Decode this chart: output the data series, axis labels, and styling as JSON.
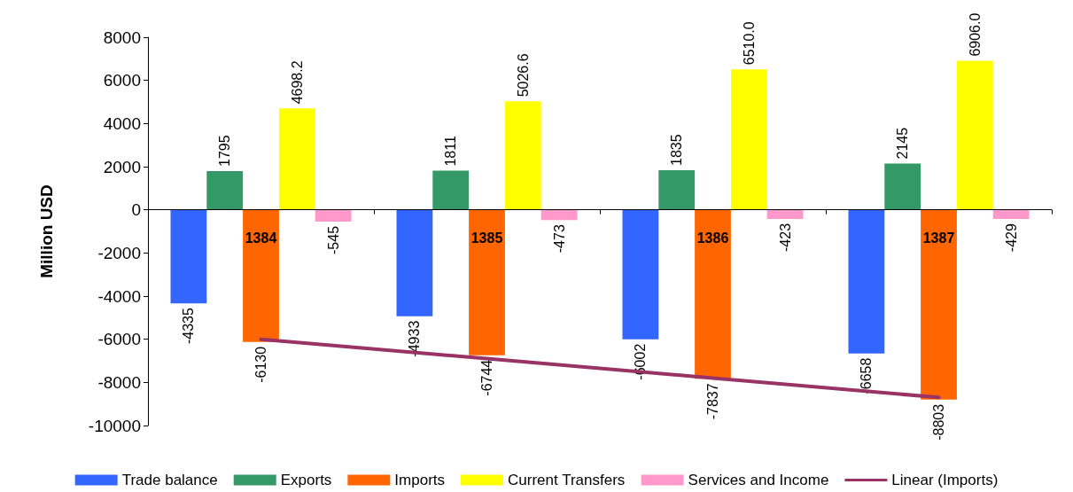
{
  "chart_data": {
    "type": "bar",
    "ylabel": "Million USD",
    "categories": [
      "1384",
      "1385",
      "1386",
      "1387"
    ],
    "series": [
      {
        "name": "Trade balance",
        "color": "#3366ff",
        "values": [
          -4335,
          -4933,
          -6002,
          -6658
        ],
        "value_labels": [
          "-4335",
          "-4933",
          "-6002",
          "-6658"
        ]
      },
      {
        "name": "Exports",
        "color": "#339966",
        "values": [
          1795,
          1811,
          1835,
          2145
        ],
        "value_labels": [
          "1795",
          "1811",
          "1835",
          "2145"
        ]
      },
      {
        "name": "Imports",
        "color": "#ff6600",
        "values": [
          -6130,
          -6744,
          -7837,
          -8803
        ],
        "value_labels": [
          "-6130",
          "-6744",
          "-7837",
          "-8803"
        ]
      },
      {
        "name": "Current Transfers",
        "color": "#ffff00",
        "values": [
          4698.2,
          5026.6,
          6510.0,
          6906.0
        ],
        "value_labels": [
          "4698.2",
          "5026.6",
          "6510.0",
          "6906.0"
        ]
      },
      {
        "name": "Services and Income",
        "color": "#ff99cc",
        "values": [
          -545,
          -473,
          -423,
          -429
        ],
        "value_labels": [
          "-545",
          "-473",
          "-423",
          "-429"
        ]
      },
      {
        "name": "Linear (Imports)",
        "type": "line",
        "color": "#993366",
        "values": [
          -6000,
          -6900,
          -7800,
          -8700
        ]
      }
    ],
    "ylim": [
      -10000,
      8000
    ],
    "yticks": [
      -10000,
      -8000,
      -6000,
      -4000,
      -2000,
      0,
      2000,
      4000,
      6000,
      8000
    ],
    "legend": "bottom",
    "marker": "none"
  }
}
